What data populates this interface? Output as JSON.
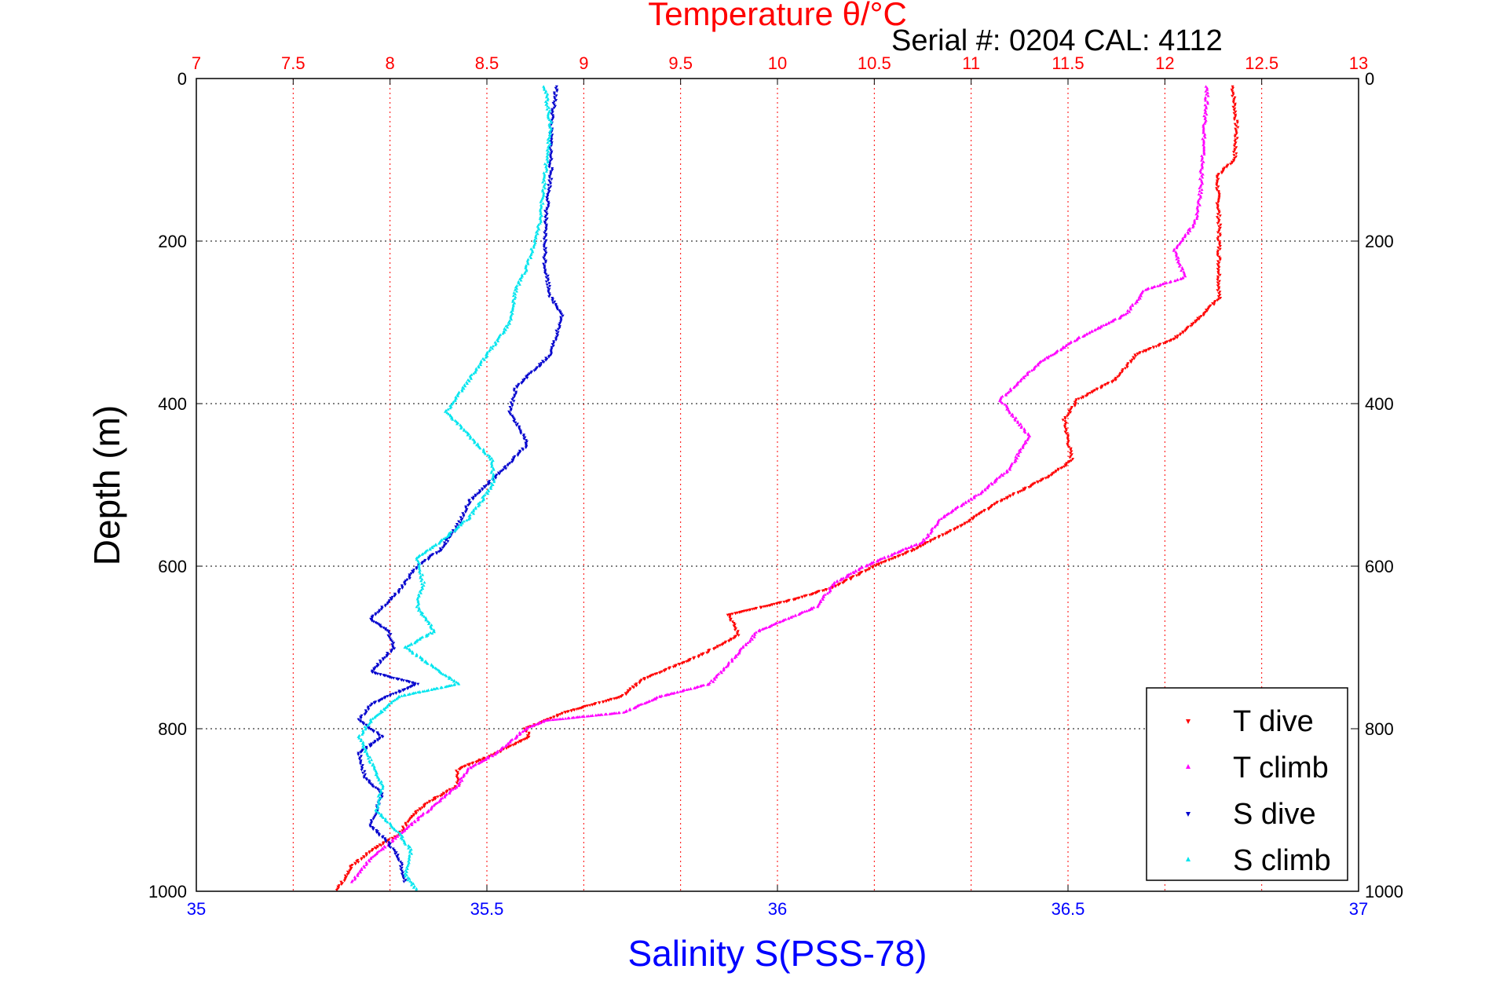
{
  "chart_data": {
    "type": "scatter",
    "title_top": "Temperature θ/°C",
    "subtitle": "Serial #: 0204  CAL: 4112",
    "xlabel": "Salinity S(PSS-78)",
    "ylabel": "Depth (m)",
    "salinity_axis": {
      "min": 35,
      "max": 37,
      "ticks": [
        "35",
        "35.5",
        "36",
        "36.5",
        "37"
      ]
    },
    "temperature_axis": {
      "min": 7,
      "max": 13,
      "ticks": [
        "7",
        "7.5",
        "8",
        "8.5",
        "9",
        "9.5",
        "10",
        "10.5",
        "11",
        "11.5",
        "12",
        "12.5",
        "13"
      ]
    },
    "depth_axis": {
      "min": 0,
      "max": 1000,
      "reversed": true,
      "ticks": [
        "0",
        "200",
        "400",
        "600",
        "800",
        "1000"
      ]
    },
    "grid": true,
    "legend_position": "bottom-right",
    "series": [
      {
        "name": "T dive",
        "axis": "temperature",
        "color": "#ff0000",
        "points": [
          [
            12.35,
            10
          ],
          [
            12.37,
            60
          ],
          [
            12.36,
            100
          ],
          [
            12.27,
            120
          ],
          [
            12.28,
            180
          ],
          [
            12.28,
            240
          ],
          [
            12.28,
            270
          ],
          [
            12.2,
            290
          ],
          [
            12.05,
            320
          ],
          [
            11.85,
            340
          ],
          [
            11.75,
            370
          ],
          [
            11.55,
            395
          ],
          [
            11.48,
            420
          ],
          [
            11.52,
            470
          ],
          [
            11.4,
            490
          ],
          [
            11.15,
            520
          ],
          [
            10.95,
            550
          ],
          [
            10.7,
            580
          ],
          [
            10.5,
            600
          ],
          [
            10.3,
            625
          ],
          [
            10.1,
            640
          ],
          [
            9.75,
            660
          ],
          [
            9.8,
            685
          ],
          [
            9.6,
            710
          ],
          [
            9.3,
            740
          ],
          [
            9.2,
            760
          ],
          [
            8.9,
            780
          ],
          [
            8.7,
            800
          ],
          [
            8.72,
            810
          ],
          [
            8.55,
            830
          ],
          [
            8.35,
            850
          ],
          [
            8.35,
            870
          ],
          [
            8.2,
            890
          ],
          [
            8.1,
            910
          ],
          [
            8.05,
            930
          ],
          [
            7.9,
            950
          ],
          [
            7.8,
            970
          ],
          [
            7.75,
            990
          ],
          [
            7.72,
            1000
          ]
        ]
      },
      {
        "name": "T climb",
        "axis": "temperature",
        "color": "#ff00ff",
        "points": [
          [
            12.22,
            10
          ],
          [
            12.2,
            80
          ],
          [
            12.18,
            150
          ],
          [
            12.15,
            180
          ],
          [
            12.05,
            210
          ],
          [
            12.1,
            245
          ],
          [
            11.9,
            260
          ],
          [
            11.8,
            290
          ],
          [
            11.55,
            320
          ],
          [
            11.35,
            350
          ],
          [
            11.15,
            395
          ],
          [
            11.3,
            440
          ],
          [
            11.2,
            480
          ],
          [
            11.05,
            510
          ],
          [
            10.85,
            540
          ],
          [
            10.75,
            570
          ],
          [
            10.45,
            600
          ],
          [
            10.3,
            620
          ],
          [
            10.2,
            650
          ],
          [
            9.9,
            680
          ],
          [
            9.75,
            720
          ],
          [
            9.65,
            745
          ],
          [
            9.4,
            760
          ],
          [
            9.2,
            780
          ],
          [
            8.8,
            790
          ],
          [
            8.7,
            800
          ],
          [
            8.55,
            830
          ],
          [
            8.4,
            850
          ],
          [
            8.35,
            870
          ],
          [
            8.25,
            890
          ],
          [
            8.15,
            910
          ],
          [
            8.0,
            940
          ],
          [
            7.9,
            960
          ],
          [
            7.8,
            990
          ]
        ]
      },
      {
        "name": "S dive",
        "axis": "salinity",
        "color": "#0000cd",
        "points": [
          [
            35.62,
            10
          ],
          [
            35.61,
            60
          ],
          [
            35.61,
            120
          ],
          [
            35.6,
            180
          ],
          [
            35.6,
            230
          ],
          [
            35.61,
            270
          ],
          [
            35.63,
            290
          ],
          [
            35.61,
            340
          ],
          [
            35.55,
            380
          ],
          [
            35.54,
            410
          ],
          [
            35.57,
            450
          ],
          [
            35.53,
            480
          ],
          [
            35.47,
            520
          ],
          [
            35.45,
            550
          ],
          [
            35.42,
            580
          ],
          [
            35.38,
            600
          ],
          [
            35.35,
            630
          ],
          [
            35.3,
            665
          ],
          [
            35.33,
            680
          ],
          [
            35.34,
            700
          ],
          [
            35.3,
            730
          ],
          [
            35.38,
            745
          ],
          [
            35.33,
            760
          ],
          [
            35.3,
            770
          ],
          [
            35.28,
            790
          ],
          [
            35.32,
            810
          ],
          [
            35.28,
            830
          ],
          [
            35.29,
            860
          ],
          [
            35.32,
            880
          ],
          [
            35.31,
            900
          ],
          [
            35.3,
            920
          ],
          [
            35.33,
            940
          ],
          [
            35.35,
            960
          ],
          [
            35.36,
            990
          ]
        ]
      },
      {
        "name": "S climb",
        "axis": "salinity",
        "color": "#00e5ee",
        "points": [
          [
            35.6,
            10
          ],
          [
            35.61,
            60
          ],
          [
            35.6,
            120
          ],
          [
            35.59,
            180
          ],
          [
            35.57,
            230
          ],
          [
            35.55,
            260
          ],
          [
            35.54,
            300
          ],
          [
            35.5,
            340
          ],
          [
            35.46,
            380
          ],
          [
            35.43,
            410
          ],
          [
            35.47,
            440
          ],
          [
            35.51,
            470
          ],
          [
            35.51,
            500
          ],
          [
            35.47,
            540
          ],
          [
            35.42,
            570
          ],
          [
            35.38,
            590
          ],
          [
            35.39,
            620
          ],
          [
            35.38,
            650
          ],
          [
            35.41,
            680
          ],
          [
            35.36,
            700
          ],
          [
            35.4,
            720
          ],
          [
            35.45,
            745
          ],
          [
            35.35,
            760
          ],
          [
            35.3,
            790
          ],
          [
            35.28,
            810
          ],
          [
            35.3,
            840
          ],
          [
            35.32,
            870
          ],
          [
            35.31,
            900
          ],
          [
            35.35,
            930
          ],
          [
            35.37,
            950
          ],
          [
            35.36,
            980
          ],
          [
            35.38,
            1000
          ]
        ]
      }
    ]
  }
}
